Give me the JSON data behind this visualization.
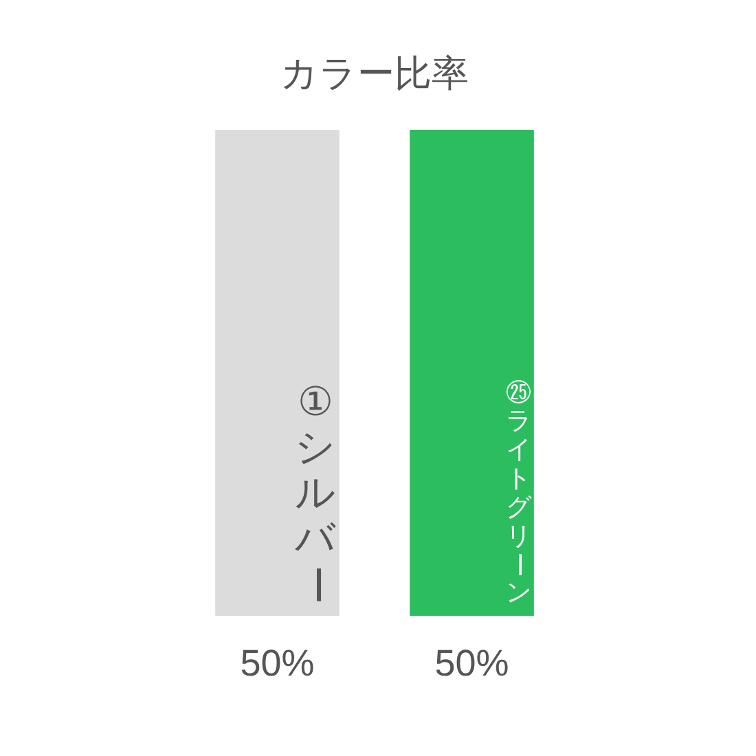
{
  "chart_data": {
    "type": "bar",
    "title": "カラー比率",
    "categories": [
      "①シルバー",
      "㉕ライトグリーン"
    ],
    "values": [
      50,
      50
    ],
    "colors": [
      "#dcdcdc",
      "#2bbd5e"
    ],
    "value_labels": [
      "50%",
      "50%"
    ],
    "tick_labels": "x"
  }
}
